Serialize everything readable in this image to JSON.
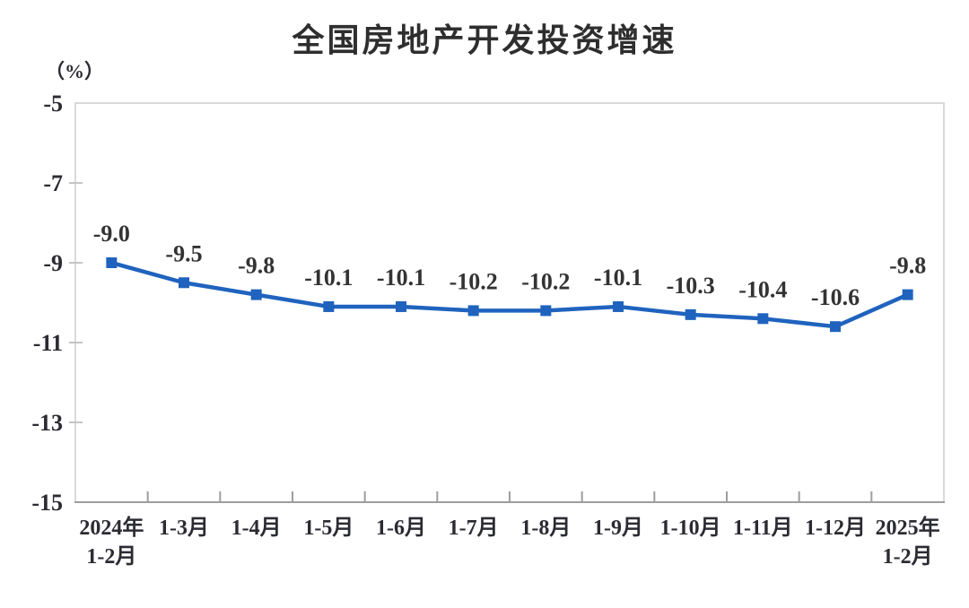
{
  "chart_data": {
    "type": "line",
    "title": "全国房地产开发投资增速",
    "unit_label": "（%）",
    "xlabel": "",
    "ylabel": "（%）",
    "categories": [
      [
        "2024年",
        "1-2月"
      ],
      [
        "1-3月"
      ],
      [
        "1-4月"
      ],
      [
        "1-5月"
      ],
      [
        "1-6月"
      ],
      [
        "1-7月"
      ],
      [
        "1-8月"
      ],
      [
        "1-9月"
      ],
      [
        "1-10月"
      ],
      [
        "1-11月"
      ],
      [
        "1-12月"
      ],
      [
        "2025年",
        "1-2月"
      ]
    ],
    "values": [
      -9.0,
      -9.5,
      -9.8,
      -10.1,
      -10.1,
      -10.2,
      -10.2,
      -10.1,
      -10.3,
      -10.4,
      -10.6,
      -9.8
    ],
    "data_labels": [
      "-9.0",
      "-9.5",
      "-9.8",
      "-10.1",
      "-10.1",
      "-10.2",
      "-10.2",
      "-10.1",
      "-10.3",
      "-10.4",
      "-10.6",
      "-9.8"
    ],
    "ylim": [
      -15,
      -5
    ],
    "yticks": [
      -5,
      -7,
      -9,
      -11,
      -13,
      -15
    ],
    "grid": false,
    "legend": "none",
    "marker": "square",
    "colors": {
      "line": "#1f63be",
      "marker": "#1f63be",
      "plot_border": "#d9d9d9",
      "axis_line": "#9e9e9e",
      "tick_left": "#c4c4c4",
      "tick_bottom": "#9e9e9e",
      "tick_label": "#2b2b33",
      "data_label": "#333333",
      "title": "#2e2e2e"
    }
  }
}
